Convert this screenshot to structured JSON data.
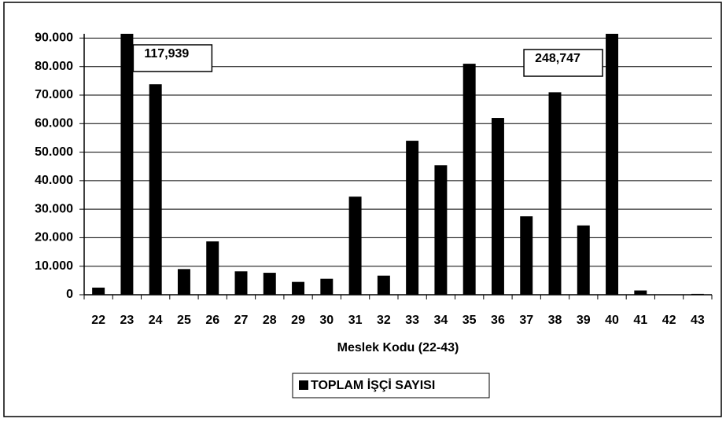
{
  "chart_data": {
    "type": "bar",
    "x_label": "Meslek Kodu (22-43)",
    "categories": [
      "22",
      "23",
      "24",
      "25",
      "26",
      "27",
      "28",
      "29",
      "30",
      "31",
      "32",
      "33",
      "34",
      "35",
      "36",
      "37",
      "38",
      "39",
      "40",
      "41",
      "42",
      "43"
    ],
    "series": [
      {
        "name": "TOPLAM İŞÇİ SAYISI",
        "color": "#000000",
        "values": [
          2500,
          117939,
          73800,
          9000,
          18700,
          8200,
          7700,
          4500,
          5600,
          34400,
          6700,
          54000,
          45400,
          81000,
          62000,
          27500,
          71000,
          24300,
          248747,
          1500,
          0,
          300
        ],
        "value_labels": [
          null,
          "117,939",
          null,
          null,
          null,
          null,
          null,
          null,
          null,
          null,
          null,
          null,
          null,
          null,
          null,
          null,
          null,
          null,
          "248,747",
          null,
          null,
          null
        ]
      }
    ],
    "ylim": [
      0,
      91500
    ],
    "yticks": [
      0,
      {
        "value": 10000,
        "label": "10.000"
      },
      {
        "value": 20000,
        "label": "20.000"
      },
      {
        "value": 30000,
        "label": "30.000"
      },
      {
        "value": 40000,
        "label": "40.000"
      },
      {
        "value": 50000,
        "label": "50.000"
      },
      {
        "value": 60000,
        "label": "60.000"
      },
      {
        "value": 70000,
        "label": "70.000"
      },
      {
        "value": 80000,
        "label": "80.000"
      },
      {
        "value": 90000,
        "label": "90.000"
      }
    ],
    "grid": true,
    "legend": "bottom"
  }
}
